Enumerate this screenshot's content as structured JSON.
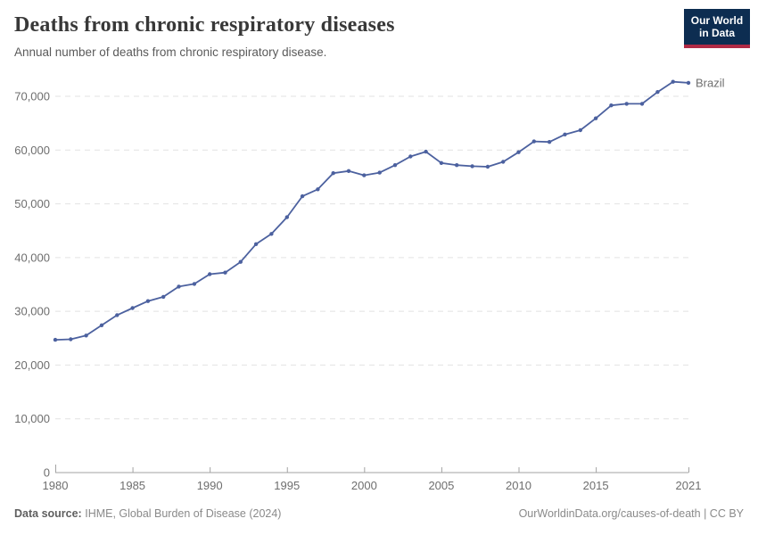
{
  "header": {
    "title": "Deaths from chronic respiratory diseases",
    "subtitle": "Annual number of deaths from chronic respiratory disease.",
    "logo": {
      "line1": "Our World",
      "line2": "in Data",
      "bg_color": "#0d2d51",
      "accent_color": "#b02a45"
    }
  },
  "chart_data": {
    "type": "line",
    "title": "Deaths from chronic respiratory diseases",
    "xlabel": "",
    "ylabel": "",
    "grid": true,
    "legend": "end-of-line-label",
    "x_axis_range": [
      1980,
      2021
    ],
    "y_axis_range": [
      0,
      70000
    ],
    "x_ticks": [
      1980,
      1985,
      1990,
      1995,
      2000,
      2005,
      2010,
      2015,
      2021
    ],
    "y_ticks": [
      0,
      10000,
      20000,
      30000,
      40000,
      50000,
      60000,
      70000
    ],
    "series": [
      {
        "name": "Brazil",
        "color": "#4c619f",
        "x": [
          1980,
          1981,
          1982,
          1983,
          1984,
          1985,
          1986,
          1987,
          1988,
          1989,
          1990,
          1991,
          1992,
          1993,
          1994,
          1995,
          1996,
          1997,
          1998,
          1999,
          2000,
          2001,
          2002,
          2003,
          2004,
          2005,
          2006,
          2007,
          2008,
          2009,
          2010,
          2011,
          2012,
          2013,
          2014,
          2015,
          2016,
          2017,
          2018,
          2019,
          2020,
          2021
        ],
        "values": [
          24700,
          24800,
          25500,
          27400,
          29300,
          30600,
          31900,
          32700,
          34600,
          35100,
          36900,
          37200,
          39200,
          42500,
          44400,
          47500,
          51400,
          52700,
          55700,
          56100,
          55300,
          55800,
          57200,
          58800,
          59700,
          57600,
          57200,
          57000,
          56900,
          57800,
          59600,
          61600,
          61500,
          62900,
          63700,
          65900,
          68300,
          68600,
          68600,
          70800,
          72700,
          72500
        ]
      }
    ],
    "colors": {
      "gridline": "#e2e2e2",
      "axis": "#a3a3a3",
      "tick_label": "#6e6e6e"
    }
  },
  "footer": {
    "source_label": "Data source:",
    "source_text": "IHME, Global Burden of Disease (2024)",
    "right_text": "OurWorldinData.org/causes-of-death | CC BY"
  }
}
